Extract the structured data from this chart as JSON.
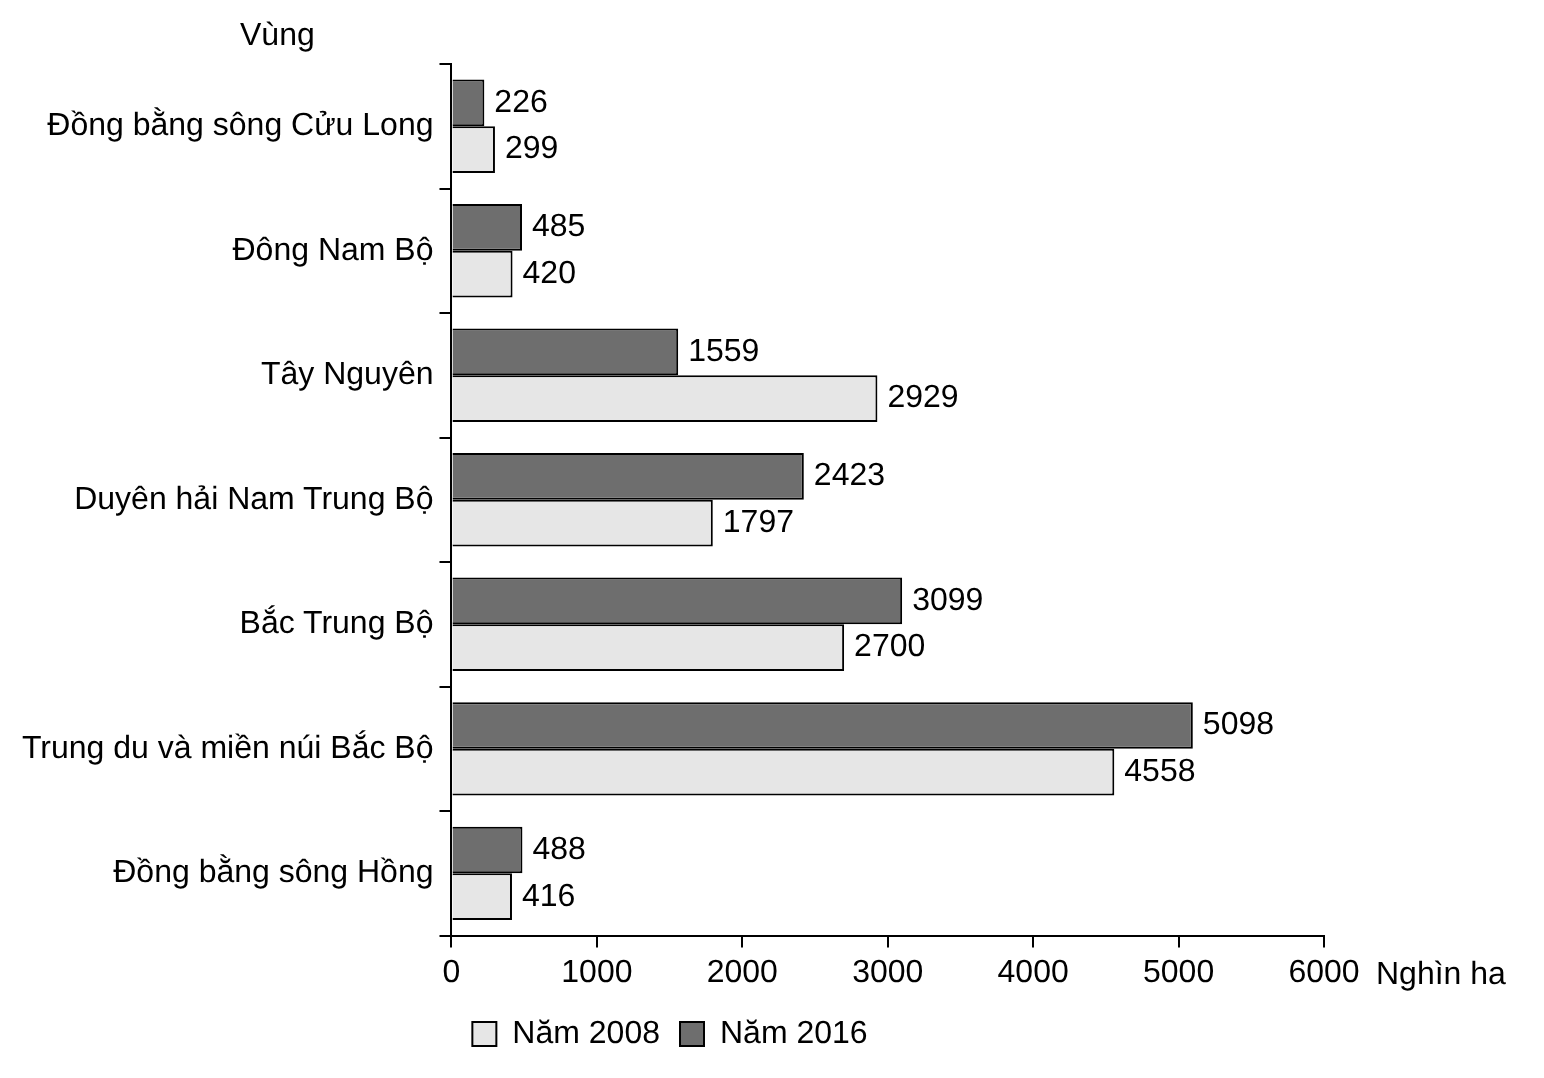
{
  "chart_data": {
    "type": "bar",
    "orientation": "horizontal",
    "ylabel": "Vùng",
    "xlabel": "Nghìn ha",
    "categories": [
      "Đồng bằng sông Cửu Long",
      "Đông Nam Bộ",
      "Tây Nguyên",
      "Duyên hải Nam Trung Bộ",
      "Bắc Trung Bộ",
      "Trung du và miền núi Bắc Bộ",
      "Đồng bằng sông Hồng"
    ],
    "series": [
      {
        "name": "Năm 2008",
        "color": "#e6e6e6",
        "values": [
          299,
          420,
          2929,
          1797,
          2700,
          4558,
          416
        ]
      },
      {
        "name": "Năm 2016",
        "color": "#6e6e6e",
        "values": [
          226,
          485,
          1559,
          2423,
          3099,
          5098,
          488
        ]
      }
    ],
    "xlim": [
      0,
      6000
    ],
    "xticks": [
      0,
      1000,
      2000,
      3000,
      4000,
      5000,
      6000
    ],
    "grid": false,
    "legend": "bottom",
    "data_labels": true
  }
}
